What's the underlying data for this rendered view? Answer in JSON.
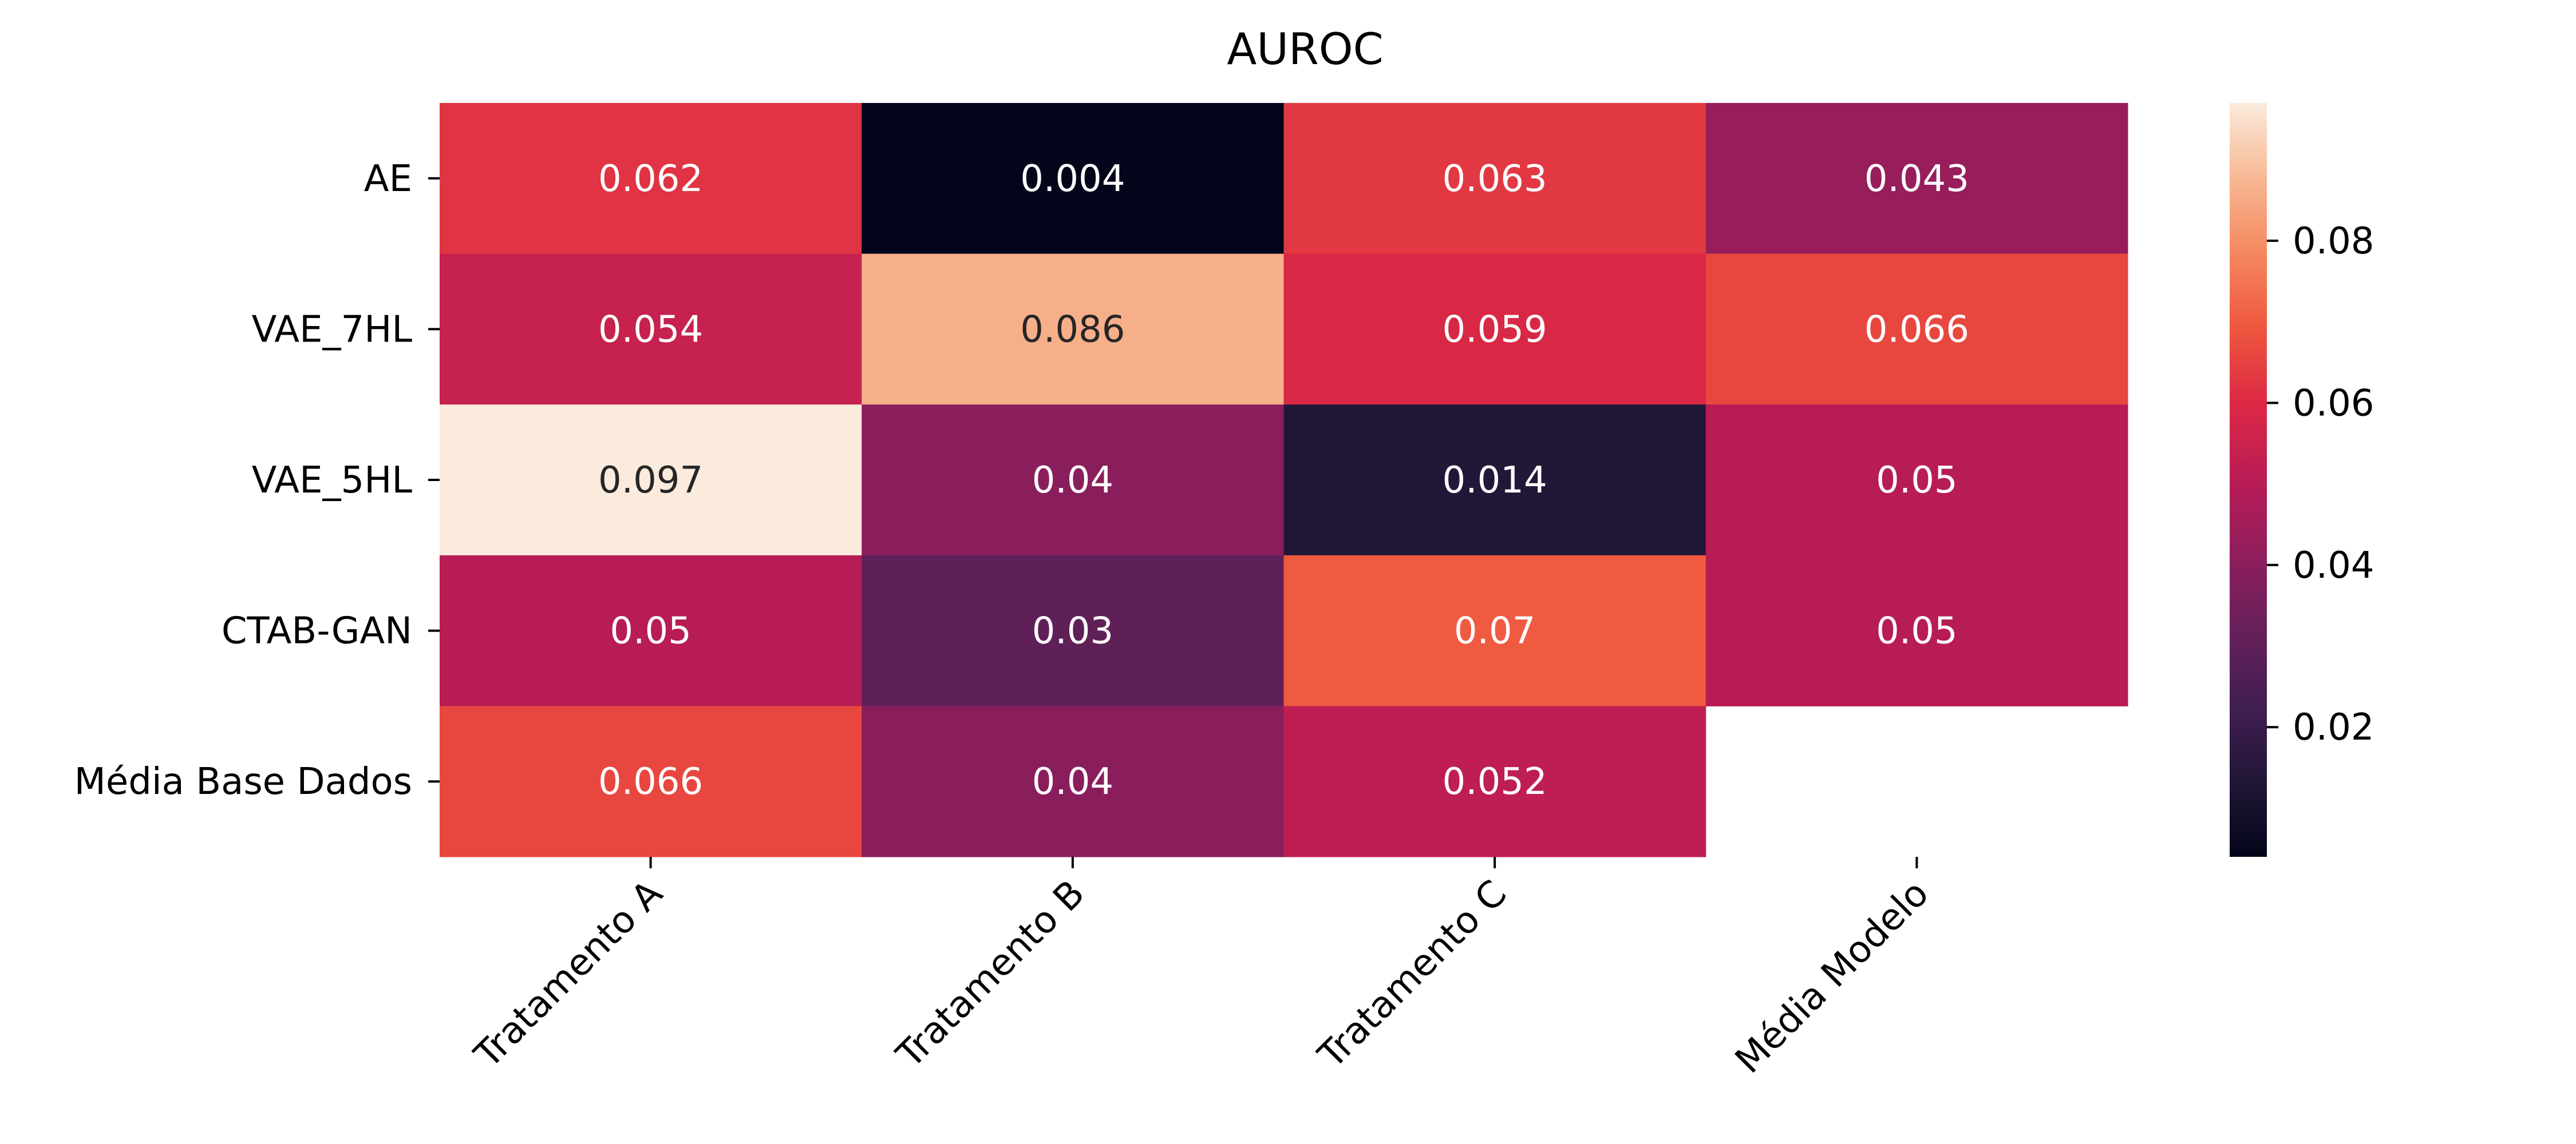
{
  "chart_data": {
    "type": "heatmap",
    "title": "AUROC",
    "rows": [
      "AE",
      "VAE_7HL",
      "VAE_5HL",
      "CTAB-GAN",
      "Média Base Dados"
    ],
    "columns": [
      "Tratamento A",
      "Tratamento B",
      "Tratamento C",
      "Média Modelo"
    ],
    "values": [
      [
        0.062,
        0.004,
        0.063,
        0.043
      ],
      [
        0.054,
        0.086,
        0.059,
        0.066
      ],
      [
        0.097,
        0.04,
        0.014,
        0.05
      ],
      [
        0.05,
        0.03,
        0.07,
        0.05
      ],
      [
        0.066,
        0.04,
        0.052,
        null
      ]
    ],
    "annotations": [
      [
        "0.062",
        "0.004",
        "0.063",
        "0.043"
      ],
      [
        "0.054",
        "0.086",
        "0.059",
        "0.066"
      ],
      [
        "0.097",
        "0.04",
        "0.014",
        "0.05"
      ],
      [
        "0.05",
        "0.03",
        "0.07",
        "0.05"
      ],
      [
        "0.066",
        "0.04",
        "0.052",
        ""
      ]
    ],
    "colorbar": {
      "colormap": "rocket",
      "vmin": 0.004,
      "vmax": 0.097,
      "ticks": [
        0.02,
        0.04,
        0.06,
        0.08
      ],
      "tick_labels": [
        "0.02",
        "0.04",
        "0.06",
        "0.08"
      ]
    },
    "xlabel": "",
    "ylabel": ""
  }
}
